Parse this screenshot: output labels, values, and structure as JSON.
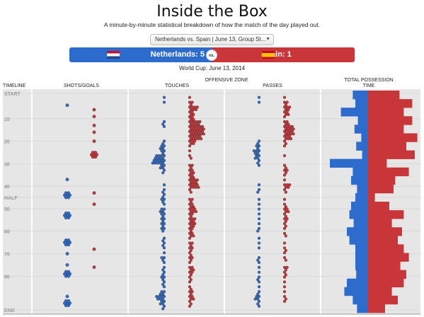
{
  "header": {
    "title": "Inside the Box",
    "subtitle": "A minute-by-minute statistical breakdown of how the match of the day played out.",
    "match_select_value": "Netherlands vs. Spain | June 13, Group St...",
    "date": "World Cup: June 13, 2014"
  },
  "score": {
    "home": {
      "label": "Netherlands: 5",
      "color": "#2d6bcc"
    },
    "away": {
      "label": "Spain: 1",
      "color": "#c8363a"
    },
    "vs": "vs."
  },
  "columns": {
    "timeline": "TIMELINE",
    "shots": "SHOTS/GOALS",
    "offensive_zone": "OFFENSIVE ZONE",
    "touches": "TOUCHES",
    "passes": "PASSES",
    "possession": "TOTAL POSSESSION TIME"
  },
  "timeline_labels": [
    "START",
    "10",
    "20",
    "30",
    "40",
    "HALF",
    "50",
    "60",
    "70",
    "80",
    "END"
  ],
  "chart_data": {
    "type": "scatter",
    "x_axis": "minute",
    "minute_range": [
      0,
      95
    ],
    "series_colors": {
      "netherlands": "#2d6bcc",
      "spain": "#c8363a"
    },
    "shots": {
      "netherlands": [
        {
          "m": 4,
          "n": 1
        },
        {
          "m": 37,
          "n": 1
        },
        {
          "m": 44,
          "n": 3
        },
        {
          "m": 53,
          "n": 3
        },
        {
          "m": 65,
          "n": 3
        },
        {
          "m": 70,
          "n": 1
        },
        {
          "m": 75,
          "n": 1
        },
        {
          "m": 79,
          "n": 3
        },
        {
          "m": 89,
          "n": 1
        },
        {
          "m": 92,
          "n": 3
        }
      ],
      "spain": [
        {
          "m": 6,
          "n": 1
        },
        {
          "m": 9,
          "n": 1
        },
        {
          "m": 13,
          "n": 1
        },
        {
          "m": 16,
          "n": 1
        },
        {
          "m": 20,
          "n": 1
        },
        {
          "m": 26,
          "n": 3
        },
        {
          "m": 43,
          "n": 1
        },
        {
          "m": 48,
          "n": 1
        },
        {
          "m": 68,
          "n": 1
        },
        {
          "m": 76,
          "n": 1
        }
      ]
    },
    "touches": {
      "netherlands": [
        1,
        1,
        0,
        0,
        0,
        2,
        1,
        0,
        0,
        2,
        4,
        3,
        8,
        10,
        4,
        2,
        0,
        0,
        1,
        2,
        2,
        3,
        1,
        4,
        3,
        3,
        3,
        3,
        0,
        2,
        2,
        1,
        1,
        3,
        1,
        2,
        2,
        3,
        2,
        1,
        4,
        7,
        4,
        2
      ],
      "spain": [
        1,
        3,
        7,
        4,
        4,
        9,
        12,
        12,
        10,
        5,
        1,
        1,
        2,
        0,
        3,
        4,
        4,
        7,
        8,
        2,
        0,
        3,
        4,
        6,
        3,
        5,
        5,
        3,
        4,
        1,
        3,
        3,
        2,
        3,
        1,
        4,
        3,
        2,
        1,
        2,
        3,
        4,
        2,
        1
      ]
    },
    "passes": {
      "netherlands": [
        1,
        1,
        0,
        0,
        0,
        0,
        0,
        0,
        0,
        2,
        3,
        5,
        4,
        2,
        1,
        0,
        0,
        0,
        1,
        2,
        0,
        1,
        1,
        1,
        1,
        1,
        1,
        2,
        0,
        1,
        1,
        1,
        0,
        2,
        1,
        1,
        1,
        2,
        1,
        1,
        2,
        4,
        2,
        1
      ],
      "spain": [
        1,
        3,
        5,
        4,
        1,
        4,
        8,
        8,
        6,
        2,
        1,
        0,
        1,
        0,
        2,
        3,
        1,
        1,
        5,
        2,
        0,
        1,
        2,
        4,
        2,
        3,
        2,
        1,
        2,
        0,
        1,
        2,
        1,
        2,
        0,
        3,
        2,
        1,
        1,
        1,
        1,
        2,
        1,
        0
      ]
    },
    "possession": {
      "netherlands": [
        0.18,
        0.15,
        0.32,
        0.12,
        0.16,
        0.08,
        0.14,
        0.07,
        0.45,
        0.18,
        0.2,
        0.13,
        0.15,
        0.2,
        0.22,
        0.17,
        0.25,
        0.22,
        0.15,
        0.15,
        0.15,
        0.14,
        0.25,
        0.28,
        0.18,
        0.13
      ],
      "spain": [
        0.37,
        0.52,
        0.42,
        0.52,
        0.42,
        0.58,
        0.45,
        0.55,
        0.22,
        0.48,
        0.32,
        0.3,
        0.08,
        0.25,
        0.42,
        0.28,
        0.4,
        0.35,
        0.42,
        0.48,
        0.38,
        0.45,
        0.42,
        0.28,
        0.35,
        0.2
      ]
    }
  }
}
